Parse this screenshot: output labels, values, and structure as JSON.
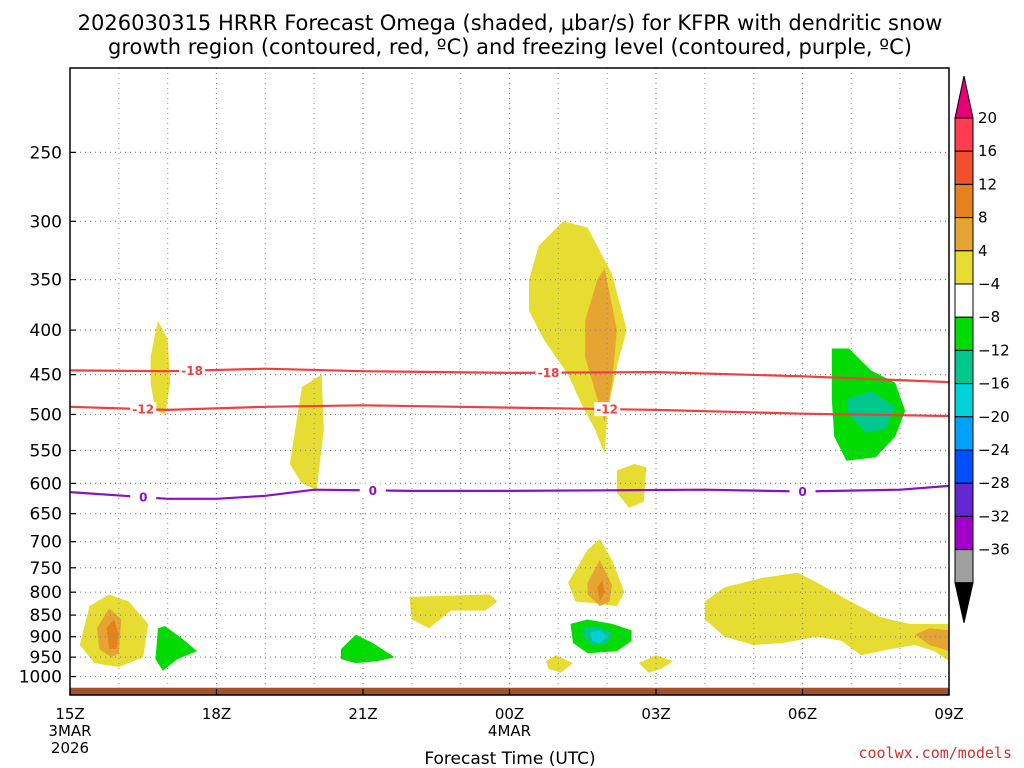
{
  "title_line1": "2026030315 HRRR Forecast Omega (shaded, μbar/s) for KFPR with dendritic snow",
  "title_line2": "growth region (contoured, red, ºC) and freezing level (contoured, purple, ºC)",
  "xlabel": "Forecast Time (UTC)",
  "credit": "coolwx.com/models",
  "x_ticks": [
    {
      "label": "15Z",
      "sub": [
        "3MAR",
        "2026"
      ],
      "hour": 0
    },
    {
      "label": "18Z",
      "sub": [],
      "hour": 3
    },
    {
      "label": "21Z",
      "sub": [],
      "hour": 6
    },
    {
      "label": "00Z",
      "sub": [
        "4MAR"
      ],
      "hour": 9
    },
    {
      "label": "03Z",
      "sub": [],
      "hour": 12
    },
    {
      "label": "06Z",
      "sub": [],
      "hour": 15
    },
    {
      "label": "09Z",
      "sub": [],
      "hour": 18
    }
  ],
  "y_ticks": [
    "250",
    "300",
    "350",
    "400",
    "450",
    "500",
    "550",
    "600",
    "650",
    "700",
    "750",
    "800",
    "850",
    "900",
    "950",
    "1000"
  ],
  "colorbar": {
    "labels": [
      "20",
      "16",
      "12",
      "8",
      "4",
      "−4",
      "−8",
      "−12",
      "−16",
      "−20",
      "−24",
      "−28",
      "−32",
      "−36"
    ],
    "colors": [
      "#ff3c50",
      "#f0502d",
      "#e6821e",
      "#e6a532",
      "#e6dc32",
      "#ffffff",
      "#00dc00",
      "#00c88c",
      "#00d2dc",
      "#00a0ff",
      "#0050ff",
      "#6428d2",
      "#a000c8",
      "#a0a0a0"
    ],
    "top_arrow_color": "#e60078",
    "bottom_arrow_color": "#000000"
  },
  "chart_data": {
    "type": "time-height cross section",
    "x_axis": {
      "range_hours": [
        0,
        18
      ],
      "start": "2026-03-03 15Z",
      "end": "2026-03-04 09Z"
    },
    "y_axis": {
      "variable": "pressure (hPa)",
      "range": [
        200,
        1050
      ],
      "scale": "log",
      "inverted": true
    },
    "contour_lines": [
      {
        "name": "dendritic -18C",
        "color": "#ee4040",
        "label": "-18",
        "points": [
          [
            0,
            445
          ],
          [
            2,
            446
          ],
          [
            4,
            443
          ],
          [
            6,
            446
          ],
          [
            9,
            448
          ],
          [
            12,
            447
          ],
          [
            15,
            452
          ],
          [
            18,
            459
          ]
        ],
        "label_hours": [
          2.5,
          9.8
        ]
      },
      {
        "name": "dendritic -12C",
        "color": "#ee4040",
        "label": "-12",
        "points": [
          [
            0,
            490
          ],
          [
            2,
            494
          ],
          [
            4,
            490
          ],
          [
            6,
            488
          ],
          [
            9,
            491
          ],
          [
            12,
            494
          ],
          [
            15,
            499
          ],
          [
            18,
            502
          ]
        ],
        "label_hours": [
          1.5,
          11.0
        ]
      },
      {
        "name": "freezing level 0C",
        "color": "#8a10c8",
        "label": "0",
        "points": [
          [
            0,
            614
          ],
          [
            2,
            625
          ],
          [
            3,
            625
          ],
          [
            4,
            620
          ],
          [
            5,
            610
          ],
          [
            7,
            612
          ],
          [
            9,
            612
          ],
          [
            11,
            611
          ],
          [
            13,
            610
          ],
          [
            15,
            613
          ],
          [
            17,
            610
          ],
          [
            18,
            604
          ]
        ],
        "label_hours": [
          1.5,
          6.2,
          15.0
        ]
      }
    ],
    "omega_regions": [
      {
        "level": "4 to 8",
        "color": "#e6dc32",
        "points": [
          [
            0.2,
            920
          ],
          [
            0.4,
            830
          ],
          [
            0.8,
            805
          ],
          [
            1.2,
            820
          ],
          [
            1.6,
            870
          ],
          [
            1.5,
            950
          ],
          [
            1.0,
            975
          ],
          [
            0.5,
            965
          ]
        ]
      },
      {
        "level": "8 to 12",
        "color": "#e6a532",
        "points": [
          [
            0.55,
            880
          ],
          [
            0.8,
            835
          ],
          [
            1.05,
            860
          ],
          [
            1.0,
            940
          ],
          [
            0.85,
            950
          ],
          [
            0.6,
            930
          ]
        ]
      },
      {
        "level": "12 to 16",
        "color": "#e6821e",
        "points": [
          [
            0.75,
            880
          ],
          [
            0.9,
            860
          ],
          [
            1.0,
            895
          ],
          [
            0.95,
            930
          ],
          [
            0.8,
            930
          ]
        ]
      },
      {
        "level": "4 to 8",
        "color": "#e6dc32",
        "points": [
          [
            1.65,
            430
          ],
          [
            1.8,
            390
          ],
          [
            2.0,
            410
          ],
          [
            2.05,
            460
          ],
          [
            1.95,
            500
          ],
          [
            1.75,
            495
          ],
          [
            1.65,
            460
          ]
        ]
      },
      {
        "level": "-8 to -4",
        "color": "#00dc00",
        "points": [
          [
            1.8,
            880
          ],
          [
            1.95,
            875
          ],
          [
            2.3,
            905
          ],
          [
            2.6,
            935
          ],
          [
            2.2,
            955
          ],
          [
            1.9,
            985
          ],
          [
            1.75,
            955
          ]
        ]
      },
      {
        "level": "4 to 8",
        "color": "#e6dc32",
        "points": [
          [
            4.5,
            570
          ],
          [
            4.75,
            465
          ],
          [
            5.15,
            450
          ],
          [
            5.2,
            520
          ],
          [
            5.05,
            610
          ],
          [
            4.75,
            600
          ]
        ]
      },
      {
        "level": "-8 to -4",
        "color": "#00dc00",
        "points": [
          [
            5.55,
            930
          ],
          [
            5.85,
            895
          ],
          [
            6.2,
            915
          ],
          [
            6.65,
            950
          ],
          [
            6.3,
            960
          ],
          [
            5.85,
            965
          ],
          [
            5.55,
            955
          ]
        ]
      },
      {
        "level": "4 to 8",
        "color": "#e6dc32",
        "points": [
          [
            6.95,
            810
          ],
          [
            8.6,
            805
          ],
          [
            8.75,
            820
          ],
          [
            8.5,
            840
          ],
          [
            7.8,
            840
          ],
          [
            7.35,
            880
          ],
          [
            7.0,
            860
          ]
        ]
      },
      {
        "level": "4 to 8",
        "color": "#e6dc32",
        "points": [
          [
            9.4,
            350
          ],
          [
            9.6,
            320
          ],
          [
            10.1,
            300
          ],
          [
            10.6,
            305
          ],
          [
            11.1,
            345
          ],
          [
            11.4,
            400
          ],
          [
            11.2,
            440
          ],
          [
            11.0,
            500
          ],
          [
            10.95,
            555
          ],
          [
            10.75,
            520
          ],
          [
            10.5,
            490
          ],
          [
            10.2,
            450
          ],
          [
            9.7,
            410
          ],
          [
            9.4,
            380
          ]
        ]
      },
      {
        "level": "8 to 12",
        "color": "#e6a532",
        "points": [
          [
            10.55,
            390
          ],
          [
            10.8,
            350
          ],
          [
            10.95,
            340
          ],
          [
            11.2,
            400
          ],
          [
            11.1,
            460
          ],
          [
            10.95,
            510
          ],
          [
            10.75,
            470
          ],
          [
            10.55,
            430
          ]
        ]
      },
      {
        "level": "4 to 8",
        "color": "#e6dc32",
        "points": [
          [
            11.2,
            580
          ],
          [
            11.55,
            570
          ],
          [
            11.8,
            575
          ],
          [
            11.75,
            630
          ],
          [
            11.45,
            640
          ],
          [
            11.2,
            615
          ]
        ]
      },
      {
        "level": "4 to 8",
        "color": "#e6dc32",
        "points": [
          [
            10.2,
            780
          ],
          [
            10.6,
            715
          ],
          [
            10.85,
            695
          ],
          [
            11.1,
            735
          ],
          [
            11.35,
            800
          ],
          [
            11.2,
            830
          ],
          [
            10.85,
            825
          ],
          [
            10.35,
            820
          ]
        ]
      },
      {
        "level": "8 to 12",
        "color": "#e6a532",
        "points": [
          [
            10.6,
            780
          ],
          [
            10.85,
            735
          ],
          [
            11.1,
            785
          ],
          [
            11.05,
            820
          ],
          [
            10.85,
            830
          ],
          [
            10.6,
            805
          ]
        ]
      },
      {
        "level": "12 to 16",
        "color": "#e6821e",
        "points": [
          [
            10.8,
            790
          ],
          [
            10.9,
            775
          ],
          [
            10.95,
            800
          ],
          [
            10.85,
            820
          ]
        ]
      },
      {
        "level": "-8 to -4",
        "color": "#00dc00",
        "points": [
          [
            10.25,
            870
          ],
          [
            10.6,
            860
          ],
          [
            11.1,
            870
          ],
          [
            11.5,
            885
          ],
          [
            11.5,
            910
          ],
          [
            11.2,
            935
          ],
          [
            10.6,
            940
          ],
          [
            10.3,
            915
          ]
        ]
      },
      {
        "level": "-12 to -8",
        "color": "#00c88c",
        "points": [
          [
            10.5,
            880
          ],
          [
            10.8,
            875
          ],
          [
            11.1,
            890
          ],
          [
            11.0,
            915
          ],
          [
            10.7,
            920
          ],
          [
            10.55,
            905
          ]
        ]
      },
      {
        "level": "-16 to -12",
        "color": "#00d2dc",
        "points": [
          [
            10.65,
            890
          ],
          [
            10.85,
            885
          ],
          [
            11.0,
            900
          ],
          [
            10.85,
            915
          ],
          [
            10.7,
            910
          ]
        ]
      },
      {
        "level": "4 to 8",
        "color": "#e6dc32",
        "points": [
          [
            9.75,
            960
          ],
          [
            9.95,
            945
          ],
          [
            10.3,
            965
          ],
          [
            10.05,
            990
          ],
          [
            9.8,
            980
          ]
        ]
      },
      {
        "level": "4 to 8",
        "color": "#e6dc32",
        "points": [
          [
            11.65,
            965
          ],
          [
            12.0,
            945
          ],
          [
            12.35,
            960
          ],
          [
            12.1,
            980
          ],
          [
            11.85,
            990
          ]
        ]
      },
      {
        "level": "-8 to -4",
        "color": "#00dc00",
        "points": [
          [
            15.6,
            420
          ],
          [
            15.95,
            420
          ],
          [
            16.4,
            445
          ],
          [
            16.9,
            460
          ],
          [
            17.1,
            495
          ],
          [
            16.9,
            530
          ],
          [
            16.5,
            560
          ],
          [
            15.9,
            565
          ],
          [
            15.65,
            530
          ],
          [
            15.6,
            480
          ]
        ]
      },
      {
        "level": "-12 to -8",
        "color": "#00c88c",
        "points": [
          [
            15.9,
            480
          ],
          [
            16.4,
            470
          ],
          [
            16.9,
            490
          ],
          [
            16.7,
            520
          ],
          [
            16.3,
            525
          ],
          [
            15.95,
            500
          ]
        ]
      },
      {
        "level": "4 to 8",
        "color": "#e6dc32",
        "points": [
          [
            13.0,
            820
          ],
          [
            13.4,
            790
          ],
          [
            14.2,
            770
          ],
          [
            14.9,
            760
          ],
          [
            15.3,
            780
          ],
          [
            15.9,
            815
          ],
          [
            16.6,
            855
          ],
          [
            17.2,
            870
          ],
          [
            18.0,
            870
          ],
          [
            18.0,
            960
          ],
          [
            17.7,
            935
          ],
          [
            17.3,
            920
          ],
          [
            16.8,
            930
          ],
          [
            16.2,
            945
          ],
          [
            15.8,
            910
          ],
          [
            15.3,
            900
          ],
          [
            14.6,
            915
          ],
          [
            14.0,
            920
          ],
          [
            13.4,
            900
          ],
          [
            13.0,
            860
          ]
        ]
      },
      {
        "level": "8 to 12",
        "color": "#e6a532",
        "points": [
          [
            17.3,
            895
          ],
          [
            17.6,
            880
          ],
          [
            18.0,
            885
          ],
          [
            18.0,
            935
          ],
          [
            17.6,
            920
          ]
        ]
      }
    ],
    "surface": {
      "color": "#a0522d",
      "pressure_range": [
        1030,
        1050
      ]
    }
  }
}
